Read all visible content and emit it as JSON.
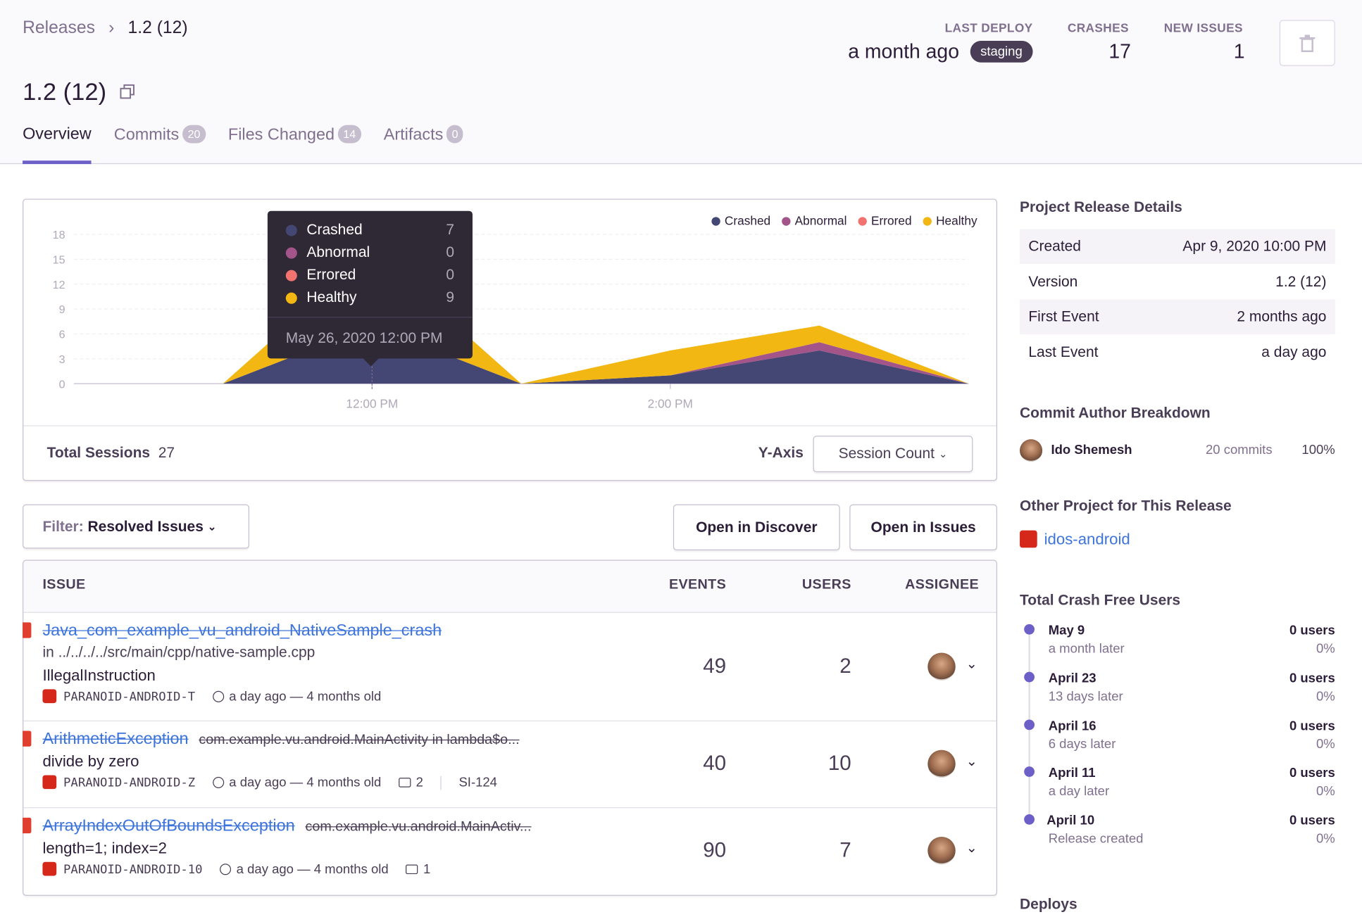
{
  "breadcrumb": [
    "Releases",
    "1.2 (12)"
  ],
  "header": {
    "title": "1.2 (12)",
    "stats": [
      {
        "label": "LAST DEPLOY",
        "value": "a month ago",
        "badge": "staging"
      },
      {
        "label": "CRASHES",
        "value": "17"
      },
      {
        "label": "NEW ISSUES",
        "value": "1"
      }
    ]
  },
  "tabs": [
    {
      "label": "Overview"
    },
    {
      "label": "Commits",
      "count": "20"
    },
    {
      "label": "Files Changed",
      "count": "14"
    },
    {
      "label": "Artifacts",
      "count": "0"
    }
  ],
  "chart_data": {
    "type": "area",
    "stacked": true,
    "categories": [
      null,
      null,
      "12:00 PM",
      null,
      "2:00 PM",
      null,
      null
    ],
    "series": [
      {
        "name": "Crashed",
        "color": "#444674",
        "values": [
          0,
          0,
          7,
          0,
          1,
          4,
          0
        ]
      },
      {
        "name": "Abnormal",
        "color": "#a35488",
        "values": [
          0,
          0,
          0,
          0,
          0,
          1,
          0
        ]
      },
      {
        "name": "Errored",
        "color": "#f2726f",
        "values": [
          0,
          0,
          0,
          0,
          0,
          0,
          0
        ]
      },
      {
        "name": "Healthy",
        "color": "#f2b712",
        "values": [
          0,
          0,
          9,
          0,
          3,
          2,
          0
        ]
      }
    ],
    "ylim": [
      0,
      18
    ],
    "yticks": [
      0,
      3,
      6,
      9,
      12,
      15,
      18
    ],
    "grid": true,
    "legend": "top-right",
    "tooltip": {
      "index": 2,
      "title": "May 26, 2020 12:00 PM"
    }
  },
  "sessions": {
    "total_label": "Total Sessions",
    "total": "27",
    "y_axis_label": "Y-Axis",
    "y_axis_value": "Session Count"
  },
  "filter": {
    "label": "Filter:",
    "value": "Resolved Issues"
  },
  "actions": [
    "Open in Discover",
    "Open in Issues"
  ],
  "issues": {
    "headers": [
      "ISSUE",
      "EVENTS",
      "USERS",
      "ASSIGNEE"
    ],
    "rows": [
      {
        "title": "Java_com_example_vu_android_NativeSample_crash",
        "culprit": "in ../../../../src/main/cpp/native-sample.cpp",
        "message": "IllegalInstruction",
        "project": "PARANOID-ANDROID-T",
        "time": "a day ago — 4 months old",
        "events": "49",
        "users": "2"
      },
      {
        "title": "ArithmeticException",
        "culprit": "com.example.vu.android.MainActivity in lambda$o...",
        "message": "divide by zero",
        "project": "PARANOID-ANDROID-Z",
        "time": "a day ago — 4 months old",
        "comments": "2",
        "ticket": "SI-124",
        "events": "40",
        "users": "10"
      },
      {
        "title": "ArrayIndexOutOfBoundsException",
        "culprit": "com.example.vu.android.MainActiv...",
        "message": "length=1; index=2",
        "project": "PARANOID-ANDROID-10",
        "time": "a day ago — 4 months old",
        "comments": "1",
        "events": "90",
        "users": "7"
      }
    ]
  },
  "sidebar": {
    "details_title": "Project Release Details",
    "details": [
      [
        "Created",
        "Apr 9, 2020 10:00 PM"
      ],
      [
        "Version",
        "1.2 (12)"
      ],
      [
        "First Event",
        "2 months ago"
      ],
      [
        "Last Event",
        "a day ago"
      ]
    ],
    "authors_title": "Commit Author Breakdown",
    "author": {
      "name": "Ido Shemesh",
      "commits": "20 commits",
      "percent": "100%"
    },
    "projects_title": "Other Project for This Release",
    "project": "idos-android",
    "crash_free_title": "Total Crash Free Users",
    "crash_free": [
      {
        "date": "May 9",
        "sub": "a month later",
        "users": "0 users",
        "pct": "0%"
      },
      {
        "date": "April 23",
        "sub": "13 days later",
        "users": "0 users",
        "pct": "0%"
      },
      {
        "date": "April 16",
        "sub": "6 days later",
        "users": "0 users",
        "pct": "0%"
      },
      {
        "date": "April 11",
        "sub": "a day later",
        "users": "0 users",
        "pct": "0%"
      },
      {
        "date": "April 10",
        "sub": "Release created",
        "users": "0 users",
        "pct": "0%"
      }
    ],
    "deploys_title": "Deploys"
  }
}
